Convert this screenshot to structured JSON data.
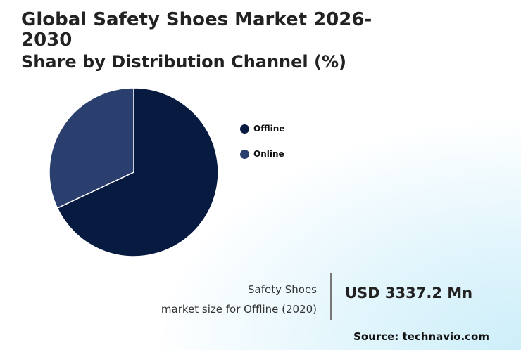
{
  "header": {
    "title": "Global Safety Shoes Market 2026-2030",
    "subtitle": "Share by Distribution Channel (%)"
  },
  "chart_data": {
    "type": "pie",
    "categories": [
      "Offline",
      "Online"
    ],
    "values": [
      68,
      32
    ],
    "colors": [
      "#071a40",
      "#2b3f6e"
    ],
    "legend_position": "right"
  },
  "market_size": {
    "label_line1": "Safety Shoes",
    "label_line2": "market size for Offline (2020)",
    "value": "USD 3337.2 Mn"
  },
  "source": "Source: technavio.com"
}
